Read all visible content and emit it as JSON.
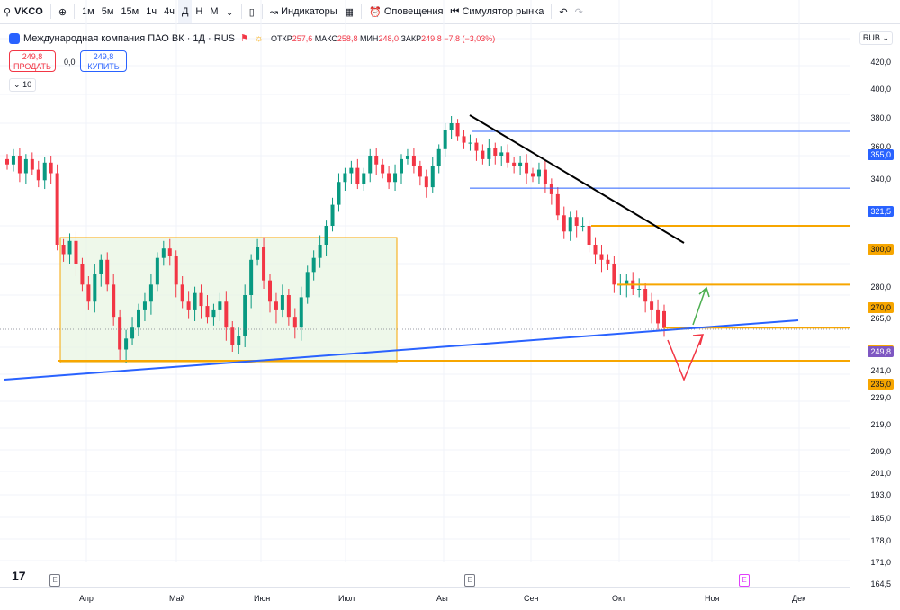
{
  "toolbar": {
    "symbol": "VKCO",
    "timeframes": [
      "1м",
      "5м",
      "15м",
      "1ч",
      "4ч",
      "Д",
      "Н",
      "М"
    ],
    "active_timeframe": "Д",
    "indicators_label": "Индикаторы",
    "alerts_label": "Оповещения",
    "simulator_label": "Симулятор рынка"
  },
  "legend": {
    "title": "Международная компания ПАО ВК · 1Д · RUS",
    "open_label": "ОТКР",
    "open": "257,6",
    "high_label": "МАКС",
    "high": "258,8",
    "low_label": "МИН",
    "low": "248,0",
    "close_label": "ЗАКР",
    "close": "249,8",
    "change": "−7,8 (−3,03%)"
  },
  "trade": {
    "sell_price": "249,8",
    "sell_label": "ПРОДАТЬ",
    "spread": "0,0",
    "buy_price": "249,8",
    "buy_label": "КУПИТЬ",
    "volume_toggle": "10"
  },
  "currency": "RUB",
  "colors": {
    "up": "#089981",
    "down": "#f23645",
    "hline_blue": "#2962ff",
    "hline_orange": "#f7a600",
    "current": "#7e57c2"
  },
  "axis": {
    "ticks": [
      "420,0",
      "400,0",
      "380,0",
      "360,0",
      "340,0",
      "300,0",
      "280,0",
      "265,0",
      "241,0",
      "229,0",
      "219,0",
      "209,0",
      "201,0",
      "193,0",
      "185,0",
      "178,0",
      "171,0",
      "164,5"
    ],
    "months": [
      "Апр",
      "Май",
      "Июн",
      "Июл",
      "Авг",
      "Сен",
      "Окт",
      "Ноя",
      "Дек"
    ]
  },
  "levels": [
    {
      "label": "355,0",
      "color": "blue"
    },
    {
      "label": "321,5",
      "color": "blue"
    },
    {
      "label": "300,0",
      "color": "orange"
    },
    {
      "label": "270,0",
      "color": "orange"
    },
    {
      "label": "250,0",
      "color": "orange"
    },
    {
      "label": "249,8",
      "color": "current"
    },
    {
      "label": "235,0",
      "color": "orange"
    }
  ],
  "markers": {
    "earnings": "E"
  },
  "chart_data": {
    "type": "candlestick",
    "ticker": "VKCO",
    "timeframe": "1D",
    "last": {
      "open": 257.6,
      "high": 258.8,
      "low": 248.0,
      "close": 249.8
    },
    "closes": [
      335,
      340,
      330,
      338,
      332,
      326,
      336,
      330,
      290,
      285,
      292,
      280,
      270,
      262,
      275,
      282,
      270,
      255,
      240,
      245,
      250,
      258,
      262,
      270,
      283,
      288,
      284,
      270,
      262,
      258,
      266,
      260,
      255,
      258,
      262,
      250,
      242,
      246,
      265,
      282,
      289,
      272,
      262,
      258,
      265,
      255,
      250,
      264,
      276,
      283,
      290,
      300,
      312,
      325,
      330,
      333,
      324,
      330,
      340,
      335,
      330,
      325,
      330,
      338,
      340,
      334,
      328,
      322,
      334,
      344,
      356,
      360,
      352,
      348,
      348,
      343,
      338,
      345,
      340,
      342,
      336,
      334,
      336,
      330,
      328,
      332,
      324,
      318,
      306,
      297,
      305,
      300,
      300,
      290,
      285,
      282,
      280,
      270,
      270,
      272,
      268,
      268,
      262,
      258,
      252,
      249.8
    ]
  }
}
